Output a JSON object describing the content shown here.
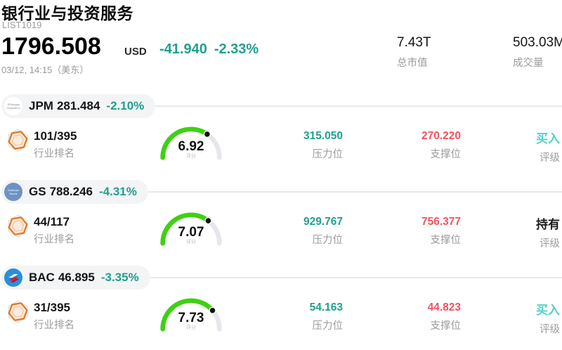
{
  "header": {
    "title": "银行业与投资服务",
    "list_id": "LIST1019"
  },
  "quote": {
    "price": "1796.508",
    "currency": "USD",
    "change": "-41.940",
    "change_pct": "-2.33%",
    "timestamp": "03/12, 14:15（美东）"
  },
  "stats": {
    "market_cap": "7.43T",
    "market_cap_label": "总市值",
    "volume": "503.03M",
    "volume_label": "成交量"
  },
  "labels": {
    "rank": "行业排名",
    "score": "评分",
    "resistance": "压力位",
    "support": "支撑位",
    "rating": "评级"
  },
  "colors": {
    "teal": "#219f8f",
    "red": "#f4525e",
    "rating_buy": "#4ed2c6",
    "rating_hold": "#1a1a1a",
    "gauge_green": "#3ed112",
    "badge_orange": "#e0771f"
  },
  "rows": [
    {
      "ticker": "JPM",
      "price": "281.484",
      "change_pct": "-2.10%",
      "logo": {
        "icon": "jpmorgan-logo",
        "bg": "#ffffff",
        "fg": "#8a8a8a",
        "line1": "JPMorgan",
        "line2": "Chase&Co"
      },
      "rank": "101/395",
      "score": "6.92",
      "resistance": "315.050",
      "support": "270.220",
      "rating": "买入",
      "rating_color": "rating_buy"
    },
    {
      "ticker": "GS",
      "price": "788.246",
      "change_pct": "-4.31%",
      "logo": {
        "icon": "goldman-sachs-logo",
        "bg": "#6e92c3",
        "fg": "#ffffff",
        "line1": "Goldman",
        "line2": "Sachs"
      },
      "rank": "44/117",
      "score": "7.07",
      "resistance": "929.767",
      "support": "756.377",
      "rating": "持有",
      "rating_color": "rating_hold"
    },
    {
      "ticker": "BAC",
      "price": "46.895",
      "change_pct": "-3.35%",
      "logo": {
        "icon": "bank-of-america-flag-icon",
        "bg": "#2a8fd8",
        "fg": "#e31837"
      },
      "rank": "31/395",
      "score": "7.73",
      "resistance": "54.163",
      "support": "44.823",
      "rating": "买入",
      "rating_color": "rating_buy"
    }
  ]
}
